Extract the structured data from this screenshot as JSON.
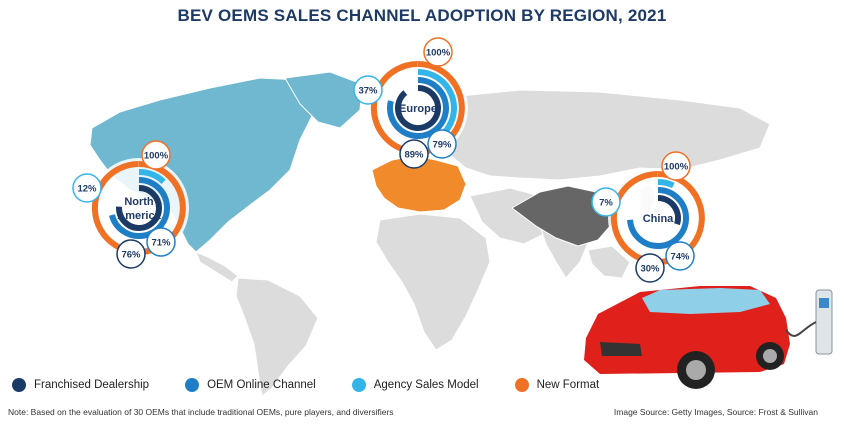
{
  "title": "BEV OEMS SALES CHANNEL ADOPTION BY REGION, 2021",
  "colors": {
    "franchised": "#1b3a66",
    "oem_online": "#1f7fc6",
    "agency": "#33b5ea",
    "new_format": "#f07024",
    "map_americas": "#6fb8d0",
    "map_europe": "#f08a2a",
    "map_china": "#666666",
    "map_other": "#dcdcdc"
  },
  "legend": [
    {
      "label": "Franchised Dealership",
      "color_key": "franchised"
    },
    {
      "label": "OEM Online Channel",
      "color_key": "oem_online"
    },
    {
      "label": "Agency Sales Model",
      "color_key": "agency"
    },
    {
      "label": "New Format",
      "color_key": "new_format"
    }
  ],
  "note": "Note:  Based on the evaluation of 30 OEMs that include traditional OEMs, pure players, and diversifiers",
  "source": "Image Source: Getty Images, Source: Frost & Sullivan",
  "chart_data": {
    "type": "radial-bar",
    "title": "BEV OEMS SALES CHANNEL ADOPTION BY REGION, 2021",
    "series_names": [
      "Franchised Dealership",
      "OEM Online Channel",
      "Agency Sales Model",
      "New Format"
    ],
    "regions": [
      {
        "name": "North America",
        "label": "North\nAmerica",
        "values": {
          "franchised": 76,
          "oem_online": 71,
          "agency": 12,
          "new_format": 100
        },
        "labels": {
          "franchised": "76%",
          "oem_online": "71%",
          "agency": "12%",
          "new_format": "100%"
        }
      },
      {
        "name": "Europe",
        "label": "Europe",
        "values": {
          "franchised": 89,
          "oem_online": 79,
          "agency": 37,
          "new_format": 100
        },
        "labels": {
          "franchised": "89%",
          "oem_online": "79%",
          "agency": "37%",
          "new_format": "100%"
        }
      },
      {
        "name": "China",
        "label": "China",
        "values": {
          "franchised": 30,
          "oem_online": 74,
          "agency": 7,
          "new_format": 100
        },
        "labels": {
          "franchised": "30%",
          "oem_online": "74%",
          "agency": "7%",
          "new_format": "100%"
        }
      }
    ]
  }
}
